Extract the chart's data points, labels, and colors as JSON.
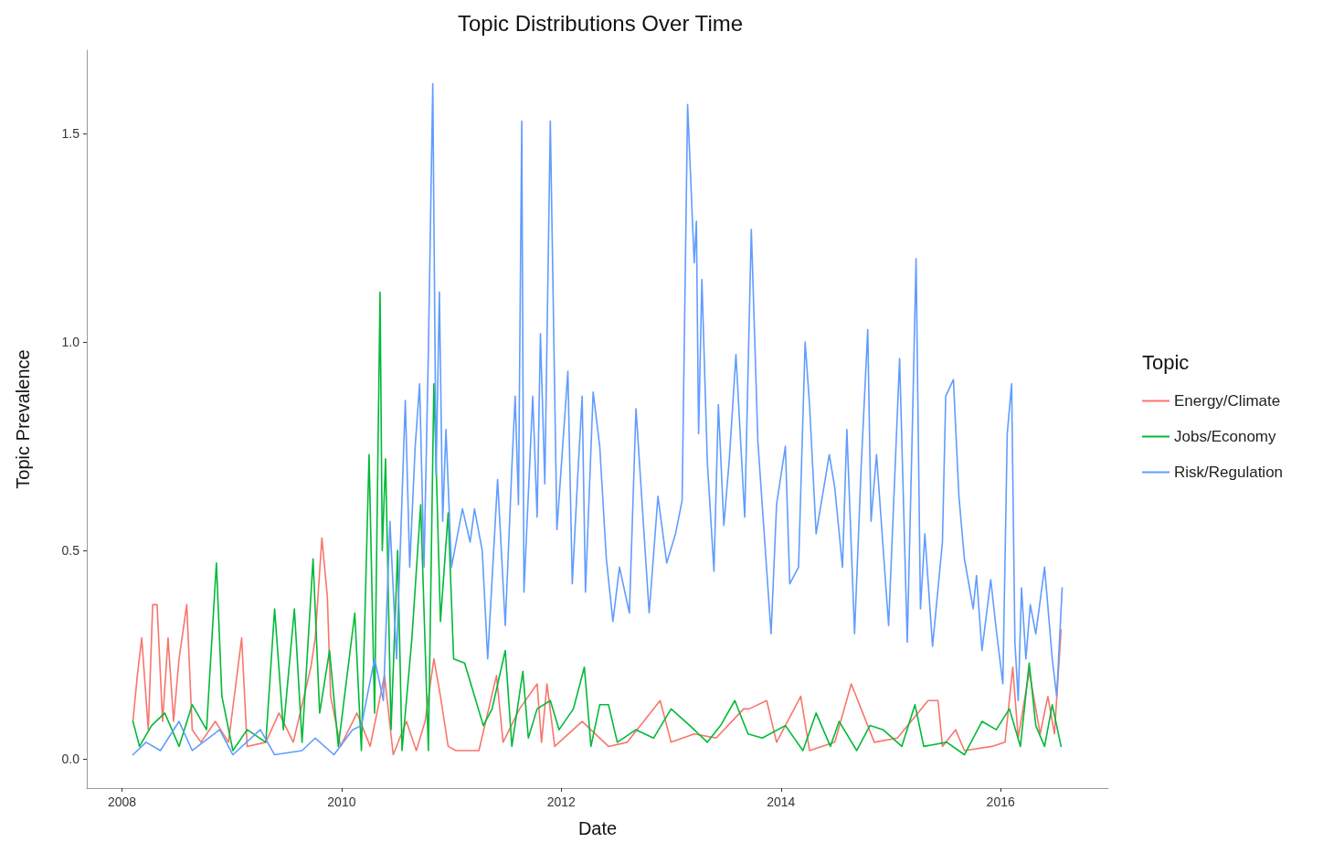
{
  "chart_data": {
    "type": "line",
    "title": "Topic Distributions Over Time",
    "xlabel": "Date",
    "ylabel": "Topic Prevalence",
    "legend_title": "Topic",
    "legend": "right",
    "marker": "none",
    "line_style": "solid",
    "xlim": [
      2007.68,
      2016.98
    ],
    "xticks": [
      2008,
      2010,
      2012,
      2014,
      2016
    ],
    "ylim": [
      -0.07,
      1.7
    ],
    "yticks": [
      {
        "value": 0,
        "label": "0.0"
      },
      {
        "value": 0.5,
        "label": "0.5"
      },
      {
        "value": 1,
        "label": "1.0"
      },
      {
        "value": 1.5,
        "label": "1.5"
      }
    ],
    "series": [
      {
        "name": "Energy/Climate",
        "color": "#f8766d",
        "x": [
          2008.1,
          2008.14,
          2008.18,
          2008.24,
          2008.28,
          2008.32,
          2008.37,
          2008.42,
          2008.47,
          2008.52,
          2008.59,
          2008.64,
          2008.72,
          2008.85,
          2008.97,
          2009.09,
          2009.14,
          2009.31,
          2009.43,
          2009.56,
          2009.72,
          2009.76,
          2009.82,
          2009.87,
          2009.9,
          2009.99,
          2010.14,
          2010.26,
          2010.39,
          2010.47,
          2010.59,
          2010.68,
          2010.76,
          2010.84,
          2010.9,
          2010.97,
          2011.04,
          2011.25,
          2011.41,
          2011.47,
          2011.62,
          2011.78,
          2011.82,
          2011.87,
          2011.94,
          2012.19,
          2012.43,
          2012.6,
          2012.9,
          2013.0,
          2013.21,
          2013.41,
          2013.66,
          2013.71,
          2013.87,
          2013.96,
          2014.18,
          2014.26,
          2014.49,
          2014.64,
          2014.73,
          2014.85,
          2015.06,
          2015.34,
          2015.43,
          2015.47,
          2015.59,
          2015.67,
          2015.92,
          2016.04,
          2016.11,
          2016.16,
          2016.26,
          2016.36,
          2016.43,
          2016.49,
          2016.55
        ],
        "values": [
          0.09,
          0.2,
          0.29,
          0.07,
          0.37,
          0.37,
          0.09,
          0.29,
          0.09,
          0.24,
          0.37,
          0.07,
          0.04,
          0.09,
          0.04,
          0.29,
          0.03,
          0.04,
          0.11,
          0.04,
          0.22,
          0.29,
          0.53,
          0.39,
          0.15,
          0.03,
          0.11,
          0.03,
          0.2,
          0.01,
          0.09,
          0.02,
          0.09,
          0.24,
          0.15,
          0.03,
          0.02,
          0.02,
          0.2,
          0.04,
          0.12,
          0.18,
          0.04,
          0.18,
          0.03,
          0.09,
          0.03,
          0.04,
          0.14,
          0.04,
          0.06,
          0.05,
          0.12,
          0.12,
          0.14,
          0.04,
          0.15,
          0.02,
          0.04,
          0.18,
          0.12,
          0.04,
          0.05,
          0.14,
          0.14,
          0.03,
          0.07,
          0.02,
          0.03,
          0.04,
          0.22,
          0.05,
          0.21,
          0.06,
          0.15,
          0.06,
          0.31
        ]
      },
      {
        "name": "Jobs/Economy",
        "color": "#00ba38",
        "x": [
          2008.1,
          2008.16,
          2008.27,
          2008.39,
          2008.52,
          2008.64,
          2008.77,
          2008.86,
          2008.91,
          2009.01,
          2009.14,
          2009.31,
          2009.39,
          2009.47,
          2009.57,
          2009.64,
          2009.74,
          2009.8,
          2009.89,
          2009.97,
          2010.12,
          2010.18,
          2010.25,
          2010.3,
          2010.35,
          2010.37,
          2010.4,
          2010.45,
          2010.51,
          2010.55,
          2010.64,
          2010.72,
          2010.79,
          2010.84,
          2010.9,
          2010.97,
          2011.02,
          2011.12,
          2011.29,
          2011.37,
          2011.49,
          2011.55,
          2011.65,
          2011.7,
          2011.78,
          2011.9,
          2011.98,
          2012.11,
          2012.21,
          2012.27,
          2012.35,
          2012.43,
          2012.51,
          2012.68,
          2012.84,
          2013.0,
          2013.17,
          2013.33,
          2013.45,
          2013.58,
          2013.7,
          2013.83,
          2014.04,
          2014.2,
          2014.32,
          2014.45,
          2014.53,
          2014.69,
          2014.81,
          2014.93,
          2015.1,
          2015.22,
          2015.3,
          2015.51,
          2015.67,
          2015.83,
          2015.96,
          2016.08,
          2016.18,
          2016.26,
          2016.32,
          2016.4,
          2016.47,
          2016.55
        ],
        "values": [
          0.09,
          0.03,
          0.08,
          0.11,
          0.03,
          0.13,
          0.07,
          0.47,
          0.15,
          0.02,
          0.07,
          0.04,
          0.36,
          0.07,
          0.36,
          0.04,
          0.48,
          0.11,
          0.26,
          0.03,
          0.35,
          0.02,
          0.73,
          0.11,
          1.12,
          0.5,
          0.72,
          0.07,
          0.5,
          0.02,
          0.29,
          0.61,
          0.02,
          0.9,
          0.33,
          0.59,
          0.24,
          0.23,
          0.08,
          0.12,
          0.26,
          0.03,
          0.21,
          0.05,
          0.12,
          0.14,
          0.07,
          0.12,
          0.22,
          0.03,
          0.13,
          0.13,
          0.04,
          0.07,
          0.05,
          0.12,
          0.08,
          0.04,
          0.08,
          0.14,
          0.06,
          0.05,
          0.08,
          0.02,
          0.11,
          0.03,
          0.09,
          0.02,
          0.08,
          0.07,
          0.03,
          0.13,
          0.03,
          0.04,
          0.01,
          0.09,
          0.07,
          0.12,
          0.03,
          0.23,
          0.08,
          0.03,
          0.13,
          0.03
        ]
      },
      {
        "name": "Risk/Regulation",
        "color": "#619cff",
        "x": [
          2008.1,
          2008.22,
          2008.35,
          2008.52,
          2008.64,
          2008.89,
          2009.01,
          2009.26,
          2009.39,
          2009.64,
          2009.76,
          2009.93,
          2010.1,
          2010.18,
          2010.3,
          2010.38,
          2010.44,
          2010.5,
          2010.58,
          2010.62,
          2010.67,
          2010.71,
          2010.75,
          2010.79,
          2010.83,
          2010.86,
          2010.89,
          2010.92,
          2010.95,
          2011.0,
          2011.1,
          2011.17,
          2011.21,
          2011.28,
          2011.33,
          2011.42,
          2011.49,
          2011.55,
          2011.58,
          2011.61,
          2011.64,
          2011.66,
          2011.74,
          2011.78,
          2011.81,
          2011.85,
          2011.9,
          2011.96,
          2012.06,
          2012.1,
          2012.15,
          2012.19,
          2012.22,
          2012.29,
          2012.35,
          2012.41,
          2012.47,
          2012.53,
          2012.62,
          2012.68,
          2012.8,
          2012.88,
          2012.96,
          2013.04,
          2013.1,
          2013.15,
          2013.21,
          2013.23,
          2013.25,
          2013.28,
          2013.33,
          2013.39,
          2013.43,
          2013.48,
          2013.53,
          2013.59,
          2013.67,
          2013.73,
          2013.79,
          2013.91,
          2013.96,
          2014.04,
          2014.08,
          2014.16,
          2014.22,
          2014.26,
          2014.32,
          2014.44,
          2014.49,
          2014.56,
          2014.6,
          2014.67,
          2014.73,
          2014.79,
          2014.82,
          2014.87,
          2014.98,
          2015.08,
          2015.15,
          2015.2,
          2015.23,
          2015.27,
          2015.31,
          2015.38,
          2015.47,
          2015.5,
          2015.57,
          2015.62,
          2015.67,
          2015.75,
          2015.78,
          2015.83,
          2015.91,
          2015.96,
          2016.02,
          2016.06,
          2016.1,
          2016.13,
          2016.16,
          2016.19,
          2016.23,
          2016.27,
          2016.32,
          2016.4,
          2016.47,
          2016.51,
          2016.56
        ],
        "values": [
          0.01,
          0.04,
          0.02,
          0.09,
          0.02,
          0.07,
          0.01,
          0.07,
          0.01,
          0.02,
          0.05,
          0.01,
          0.07,
          0.08,
          0.24,
          0.14,
          0.57,
          0.24,
          0.86,
          0.46,
          0.75,
          0.9,
          0.46,
          0.98,
          1.62,
          0.68,
          1.12,
          0.57,
          0.79,
          0.46,
          0.6,
          0.52,
          0.6,
          0.5,
          0.24,
          0.67,
          0.32,
          0.7,
          0.87,
          0.61,
          1.53,
          0.4,
          0.87,
          0.58,
          1.02,
          0.66,
          1.53,
          0.55,
          0.93,
          0.42,
          0.68,
          0.87,
          0.4,
          0.88,
          0.75,
          0.48,
          0.33,
          0.46,
          0.35,
          0.84,
          0.35,
          0.63,
          0.47,
          0.54,
          0.62,
          1.57,
          1.19,
          1.29,
          0.78,
          1.15,
          0.71,
          0.45,
          0.85,
          0.56,
          0.72,
          0.97,
          0.58,
          1.27,
          0.76,
          0.3,
          0.61,
          0.75,
          0.42,
          0.46,
          1.0,
          0.85,
          0.54,
          0.73,
          0.65,
          0.46,
          0.79,
          0.3,
          0.7,
          1.03,
          0.57,
          0.73,
          0.32,
          0.96,
          0.28,
          0.84,
          1.2,
          0.36,
          0.54,
          0.27,
          0.52,
          0.87,
          0.91,
          0.63,
          0.48,
          0.36,
          0.44,
          0.26,
          0.43,
          0.31,
          0.18,
          0.78,
          0.9,
          0.28,
          0.14,
          0.41,
          0.24,
          0.37,
          0.3,
          0.46,
          0.24,
          0.15,
          0.41
        ]
      }
    ]
  }
}
